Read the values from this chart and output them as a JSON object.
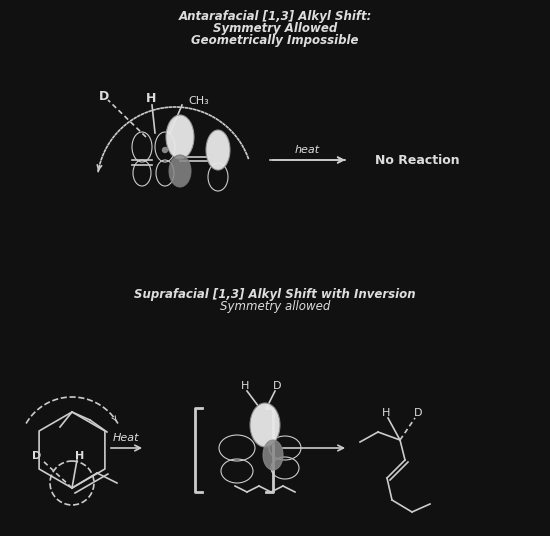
{
  "background_color": "#111111",
  "text_color": "#dddddd",
  "top_title_line1": "Antarafacial [1,3] Alkyl Shift:",
  "top_title_line2": "Symmetry Allowed",
  "top_title_line3": "Geometrically Impossible",
  "bottom_title_line1": "Suprafacial [1,3] Alkyl Shift with Inversion",
  "bottom_title_line2": "Symmetry allowed",
  "no_reaction_label": "No Reaction",
  "figsize": [
    5.5,
    5.36
  ],
  "dpi": 100,
  "orbital_white": "#e8e8e8",
  "orbital_gray": "#888888",
  "orbital_dark": "#444444",
  "line_color": "#cccccc"
}
